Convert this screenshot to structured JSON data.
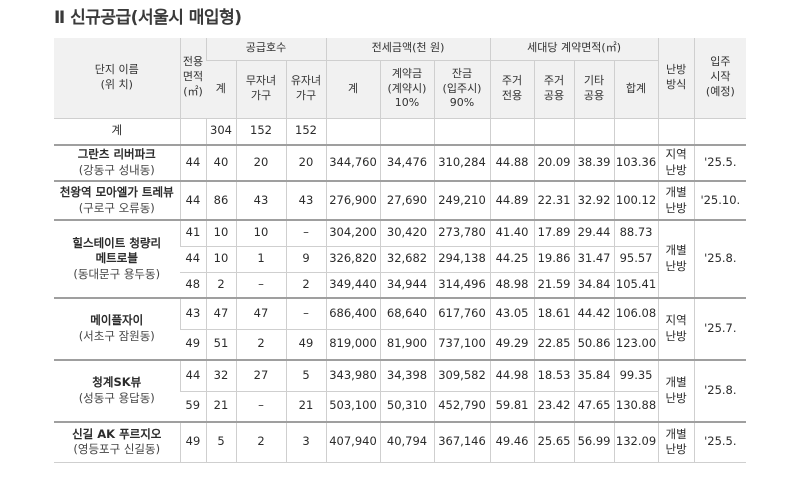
{
  "title": "Ⅱ 신규공급(서울시 매입형)",
  "header": {
    "complex": [
      "단지 이름",
      "(위 치)"
    ],
    "area": [
      "전용",
      "면적",
      "(㎡)"
    ],
    "supply": "공급호수",
    "supply_total": "계",
    "no_child": [
      "무자녀",
      "가구"
    ],
    "with_child": [
      "유자녀",
      "가구"
    ],
    "deposit": "전세금액(천 원)",
    "dep_total": "계",
    "contract": [
      "계약금",
      "(계약시)",
      "10%"
    ],
    "balance": [
      "잔금",
      "(입주시)",
      "90%"
    ],
    "contract_area": "세대당 계약면적(㎡)",
    "res_exclusive": [
      "주거",
      "전용"
    ],
    "res_common": [
      "주거",
      "공용"
    ],
    "other_common": [
      "기타",
      "공용"
    ],
    "area_sum": "합계",
    "heating": [
      "난방",
      "방식"
    ],
    "move_in": [
      "입주",
      "시작",
      "(예정)"
    ]
  },
  "total_row": {
    "label": "계",
    "total": "304",
    "no_child": "152",
    "with_child": "152"
  },
  "complexes": [
    {
      "name": "그란츠 리버파크",
      "location": "(강동구 성내동)",
      "heating": [
        "지역",
        "난방"
      ],
      "move_in": "'25.5.",
      "rows": [
        {
          "area": "44",
          "total": "40",
          "no_child": "20",
          "with_child": "20",
          "dep_total": "344,760",
          "contract": "34,476",
          "balance": "310,284",
          "res_ex": "44.88",
          "res_com": "20.09",
          "other": "38.39",
          "sum": "103.36"
        }
      ]
    },
    {
      "name": "천왕역 모아엘가 트레뷰",
      "location": "(구로구 오류동)",
      "heating": [
        "개별",
        "난방"
      ],
      "move_in": "'25.10.",
      "rows": [
        {
          "area": "44",
          "total": "86",
          "no_child": "43",
          "with_child": "43",
          "dep_total": "276,900",
          "contract": "27,690",
          "balance": "249,210",
          "res_ex": "44.89",
          "res_com": "22.31",
          "other": "32.92",
          "sum": "100.12"
        }
      ]
    },
    {
      "name": "힐스테이트 청량리",
      "name2": "메트로블",
      "location": "(동대문구 용두동)",
      "heating": [
        "개별",
        "난방"
      ],
      "move_in": "'25.8.",
      "rows": [
        {
          "area": "41",
          "total": "10",
          "no_child": "10",
          "with_child": "–",
          "dep_total": "304,200",
          "contract": "30,420",
          "balance": "273,780",
          "res_ex": "41.40",
          "res_com": "17.89",
          "other": "29.44",
          "sum": "88.73"
        },
        {
          "area": "44",
          "total": "10",
          "no_child": "1",
          "with_child": "9",
          "dep_total": "326,820",
          "contract": "32,682",
          "balance": "294,138",
          "res_ex": "44.25",
          "res_com": "19.86",
          "other": "31.47",
          "sum": "95.57"
        },
        {
          "area": "48",
          "total": "2",
          "no_child": "–",
          "with_child": "2",
          "dep_total": "349,440",
          "contract": "34,944",
          "balance": "314,496",
          "res_ex": "48.98",
          "res_com": "21.59",
          "other": "34.84",
          "sum": "105.41"
        }
      ]
    },
    {
      "name": "메이플자이",
      "location": "(서초구 잠원동)",
      "heating": [
        "지역",
        "난방"
      ],
      "move_in": "'25.7.",
      "rows": [
        {
          "area": "43",
          "total": "47",
          "no_child": "47",
          "with_child": "–",
          "dep_total": "686,400",
          "contract": "68,640",
          "balance": "617,760",
          "res_ex": "43.05",
          "res_com": "18.61",
          "other": "44.42",
          "sum": "106.08"
        },
        {
          "area": "49",
          "total": "51",
          "no_child": "2",
          "with_child": "49",
          "dep_total": "819,000",
          "contract": "81,900",
          "balance": "737,100",
          "res_ex": "49.29",
          "res_com": "22.85",
          "other": "50.86",
          "sum": "123.00"
        }
      ]
    },
    {
      "name": "청계SK뷰",
      "location": "(성동구 용답동)",
      "heating": [
        "개별",
        "난방"
      ],
      "move_in": "'25.8.",
      "rows": [
        {
          "area": "44",
          "total": "32",
          "no_child": "27",
          "with_child": "5",
          "dep_total": "343,980",
          "contract": "34,398",
          "balance": "309,582",
          "res_ex": "44.98",
          "res_com": "18.53",
          "other": "35.84",
          "sum": "99.35"
        },
        {
          "area": "59",
          "total": "21",
          "no_child": "–",
          "with_child": "21",
          "dep_total": "503,100",
          "contract": "50,310",
          "balance": "452,790",
          "res_ex": "59.81",
          "res_com": "23.42",
          "other": "47.65",
          "sum": "130.88"
        }
      ]
    },
    {
      "name": "신길 AK 푸르지오",
      "location": "(영등포구 신길동)",
      "heating": [
        "개별",
        "난방"
      ],
      "move_in": "'25.5.",
      "rows": [
        {
          "area": "49",
          "total": "5",
          "no_child": "2",
          "with_child": "3",
          "dep_total": "407,940",
          "contract": "40,794",
          "balance": "367,146",
          "res_ex": "49.46",
          "res_com": "25.65",
          "other": "56.99",
          "sum": "132.09"
        }
      ]
    }
  ]
}
